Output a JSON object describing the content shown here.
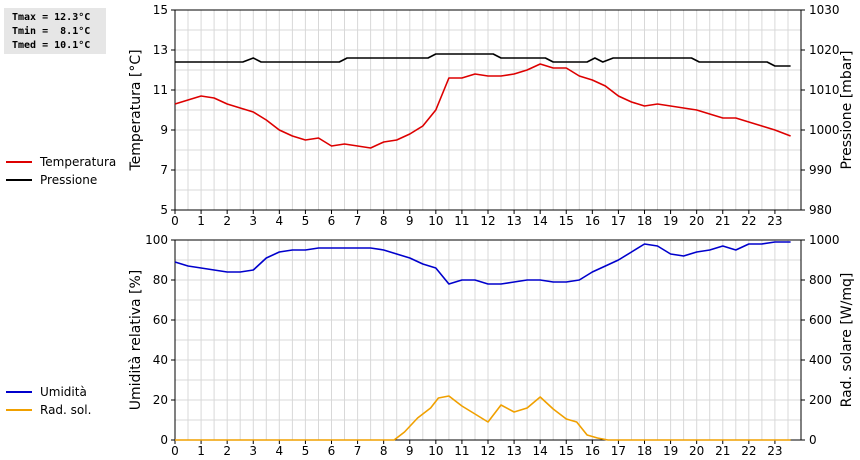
{
  "stats": {
    "tmax": "Tmax = 12.3°C",
    "tmin": "Tmin =  8.1°C",
    "tmed": "Tmed = 10.1°C"
  },
  "legend_top": [
    {
      "label": "Temperatura",
      "color": "#dd0000"
    },
    {
      "label": "Pressione",
      "color": "#000000"
    }
  ],
  "legend_bottom": [
    {
      "label": "Umidità",
      "color": "#0000cc"
    },
    {
      "label": "Rad. sol.",
      "color": "#f0a000"
    }
  ],
  "chart_data": [
    {
      "type": "line",
      "xlim": [
        0,
        24
      ],
      "x_ticks": [
        "0",
        "1",
        "2",
        "3",
        "4",
        "5",
        "6",
        "7",
        "8",
        "9",
        "10",
        "11",
        "12",
        "13",
        "14",
        "15",
        "16",
        "17",
        "18",
        "19",
        "20",
        "21",
        "22",
        "23"
      ],
      "ylabel_left": "Temperatura [°C]",
      "ylim_left": [
        5,
        15
      ],
      "yticks_left": [
        5,
        7,
        9,
        11,
        13,
        15
      ],
      "ylabel_right": "Pressione [mbar]",
      "ylim_right": [
        980,
        1030
      ],
      "yticks_right": [
        980,
        990,
        1000,
        1010,
        1020,
        1030
      ],
      "grid": true,
      "series": [
        {
          "name": "Temperatura",
          "axis": "left",
          "color": "#dd0000",
          "x": [
            0,
            0.5,
            1,
            1.5,
            2,
            2.5,
            3,
            3.5,
            4,
            4.5,
            5,
            5.5,
            6,
            6.5,
            7,
            7.5,
            8,
            8.5,
            9,
            9.5,
            10,
            10.5,
            11,
            11.5,
            12,
            12.5,
            13,
            13.5,
            14,
            14.5,
            15,
            15.5,
            16,
            16.5,
            17,
            17.5,
            18,
            18.5,
            19,
            19.5,
            20,
            20.5,
            21,
            21.5,
            22,
            22.5,
            23,
            23.6
          ],
          "y": [
            10.3,
            10.5,
            10.7,
            10.6,
            10.3,
            10.1,
            9.9,
            9.5,
            9.0,
            8.7,
            8.5,
            8.6,
            8.2,
            8.3,
            8.2,
            8.1,
            8.4,
            8.5,
            8.8,
            9.2,
            10.0,
            11.6,
            11.6,
            11.8,
            11.7,
            11.7,
            11.8,
            12.0,
            12.3,
            12.1,
            12.1,
            11.7,
            11.5,
            11.2,
            10.7,
            10.4,
            10.2,
            10.3,
            10.2,
            10.1,
            10.0,
            9.8,
            9.6,
            9.6,
            9.4,
            9.2,
            9.0,
            8.7
          ]
        },
        {
          "name": "Pressione",
          "axis": "right",
          "color": "#000000",
          "x": [
            0,
            2.6,
            3,
            3.3,
            6.3,
            6.6,
            9.7,
            10,
            12.2,
            12.5,
            14.2,
            14.5,
            15.8,
            16.1,
            16.4,
            16.8,
            19.8,
            20.1,
            22.7,
            23,
            23.6
          ],
          "y": [
            1017,
            1017,
            1018,
            1017,
            1017,
            1018,
            1018,
            1019,
            1019,
            1018,
            1018,
            1017,
            1017,
            1018,
            1017,
            1018,
            1018,
            1017,
            1017,
            1016,
            1016
          ]
        }
      ]
    },
    {
      "type": "line",
      "xlim": [
        0,
        24
      ],
      "x_ticks": [
        "0",
        "1",
        "2",
        "3",
        "4",
        "5",
        "6",
        "7",
        "8",
        "9",
        "10",
        "11",
        "12",
        "13",
        "14",
        "15",
        "16",
        "17",
        "18",
        "19",
        "20",
        "21",
        "22",
        "23"
      ],
      "ylabel_left": "Umidità relativa [%]",
      "ylim_left": [
        0,
        100
      ],
      "yticks_left": [
        0,
        20,
        40,
        60,
        80,
        100
      ],
      "ylabel_right": "Rad. solare [W/mq]",
      "ylim_right": [
        0,
        1000
      ],
      "yticks_right": [
        0,
        200,
        400,
        600,
        800,
        1000
      ],
      "grid": true,
      "series": [
        {
          "name": "Umidità",
          "axis": "left",
          "color": "#0000cc",
          "x": [
            0,
            0.5,
            1,
            1.5,
            2,
            2.5,
            3,
            3.5,
            4,
            4.5,
            5,
            5.5,
            6,
            6.5,
            7,
            7.5,
            8,
            8.5,
            9,
            9.5,
            10,
            10.5,
            11,
            11.5,
            12,
            12.5,
            13,
            13.5,
            14,
            14.5,
            15,
            15.5,
            16,
            16.5,
            17,
            17.5,
            18,
            18.5,
            19,
            19.5,
            20,
            20.5,
            21,
            21.5,
            22,
            22.5,
            23,
            23.6
          ],
          "y": [
            89,
            87,
            86,
            85,
            84,
            84,
            85,
            91,
            94,
            95,
            95,
            96,
            96,
            96,
            96,
            96,
            95,
            93,
            91,
            88,
            86,
            78,
            80,
            80,
            78,
            78,
            79,
            80,
            80,
            79,
            79,
            80,
            84,
            87,
            90,
            94,
            98,
            97,
            93,
            92,
            94,
            95,
            97,
            95,
            98,
            98,
            99,
            99
          ]
        },
        {
          "name": "Rad. sol.",
          "axis": "right",
          "color": "#f0a000",
          "x": [
            0,
            8.4,
            8.8,
            9.3,
            9.8,
            10.1,
            10.5,
            11,
            11.5,
            12,
            12.5,
            13,
            13.5,
            14,
            14.5,
            15,
            15.4,
            15.8,
            16.2,
            16.6,
            17,
            23.6
          ],
          "y": [
            0,
            0,
            40,
            110,
            160,
            210,
            220,
            170,
            130,
            90,
            175,
            140,
            160,
            215,
            155,
            105,
            90,
            25,
            10,
            0,
            0,
            0
          ]
        }
      ]
    }
  ]
}
